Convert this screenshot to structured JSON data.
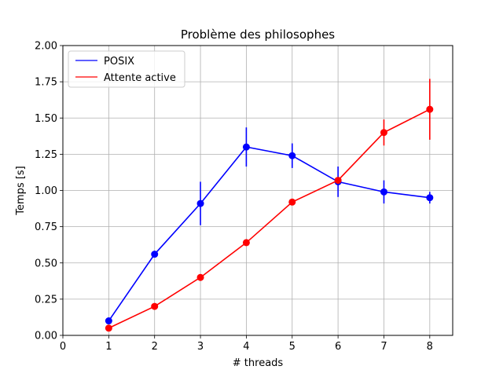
{
  "chart_data": {
    "type": "line",
    "title": "Problème des philosophes",
    "xlabel": "# threads",
    "ylabel": "Temps [s]",
    "xlim": [
      0,
      8.5
    ],
    "ylim": [
      0,
      2.0
    ],
    "xticks": [
      0,
      1,
      2,
      3,
      4,
      5,
      6,
      7,
      8
    ],
    "xtick_labels": [
      "0",
      "1",
      "2",
      "3",
      "4",
      "5",
      "6",
      "7",
      "8"
    ],
    "yticks": [
      0,
      0.25,
      0.5,
      0.75,
      1.0,
      1.25,
      1.5,
      1.75,
      2.0
    ],
    "ytick_labels": [
      "0.00",
      "0.25",
      "0.50",
      "0.75",
      "1.00",
      "1.25",
      "1.50",
      "1.75",
      "2.00"
    ],
    "grid": true,
    "legend_position": "top-left",
    "series": [
      {
        "name": "POSIX",
        "color": "#0000ff",
        "x": [
          1,
          2,
          3,
          4,
          5,
          6,
          7,
          8
        ],
        "y": [
          0.1,
          0.56,
          0.91,
          1.3,
          1.24,
          1.06,
          0.99,
          0.95
        ],
        "yerr": [
          0.02,
          0.02,
          0.15,
          0.135,
          0.085,
          0.105,
          0.08,
          0.04
        ]
      },
      {
        "name": "Attente active",
        "color": "#ff0000",
        "x": [
          1,
          2,
          3,
          4,
          5,
          6,
          7,
          8
        ],
        "y": [
          0.05,
          0.2,
          0.4,
          0.64,
          0.92,
          1.07,
          1.4,
          1.56
        ],
        "yerr": [
          0.01,
          0.01,
          0.01,
          0.01,
          0.01,
          0.02,
          0.09,
          0.21
        ]
      }
    ]
  }
}
